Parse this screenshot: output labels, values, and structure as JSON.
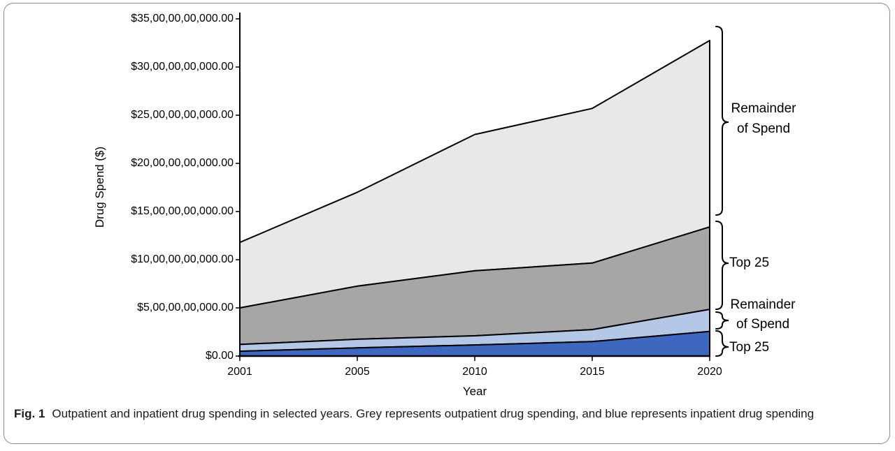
{
  "figure": {
    "caption_prefix": "Fig. 1",
    "caption_text": "Outpatient and inpatient drug spending in selected years. Grey represents outpatient drug spending, and blue represents inpatient drug spending"
  },
  "chart_data": {
    "type": "area",
    "stacked": true,
    "xlabel": "Year",
    "ylabel": "Drug Spend ($)",
    "categories": [
      "2001",
      "2005",
      "2010",
      "2015",
      "2020"
    ],
    "ylim": [
      0,
      35
    ],
    "grid": false,
    "legend_position": "right-braces",
    "y_ticks": [
      {
        "value": 0,
        "label": "$0.00"
      },
      {
        "value": 5,
        "label": "$5,00,00,00,000.00"
      },
      {
        "value": 10,
        "label": "$10,00,00,00,000.00"
      },
      {
        "value": 15,
        "label": "$15,00,00,00,000.00"
      },
      {
        "value": 20,
        "label": "$20,00,00,00,000.00"
      },
      {
        "value": 25,
        "label": "$25,00,00,00,000.00"
      },
      {
        "value": 30,
        "label": "$30,00,00,00,000.00"
      },
      {
        "value": 35,
        "label": "$35,00,00,00,000.00"
      }
    ],
    "series": [
      {
        "name": "Inpatient Top 25",
        "label": "Top 25",
        "color": "#3E68BF",
        "values": [
          0.5,
          0.85,
          1.15,
          1.5,
          2.55
        ]
      },
      {
        "name": "Inpatient Remainder of Spend",
        "label": "Remainder of Spend",
        "color": "#B4C7E7",
        "values": [
          0.7,
          0.9,
          0.95,
          1.25,
          2.3
        ]
      },
      {
        "name": "Outpatient Top 25",
        "label": "Top 25",
        "color": "#A6A6A6",
        "values": [
          3.8,
          5.5,
          6.75,
          6.9,
          8.55
        ]
      },
      {
        "name": "Outpatient Remainder of Spend",
        "label": "Remainder of Spend",
        "color": "#E8E8E8",
        "values": [
          6.8,
          9.75,
          14.15,
          16.05,
          19.35
        ]
      }
    ],
    "stacked_totals": [
      11.8,
      17.0,
      23.0,
      25.7,
      32.75
    ]
  },
  "annotations": [
    {
      "band": "outpatient-remainder",
      "lines": [
        "Remainder",
        "of Spend"
      ]
    },
    {
      "band": "outpatient-top25",
      "lines": [
        "Top 25"
      ]
    },
    {
      "band": "inpatient-remainder",
      "lines": [
        "Remainder",
        "of Spend"
      ]
    },
    {
      "band": "inpatient-top25",
      "lines": [
        "Top 25"
      ]
    }
  ],
  "colors": {
    "line": "#000000",
    "border": "#8a8a8a",
    "inpatient_top25": "#3E68BF",
    "inpatient_remainder": "#B4C7E7",
    "outpatient_top25": "#A6A6A6",
    "outpatient_remainder": "#E8E8E8"
  }
}
